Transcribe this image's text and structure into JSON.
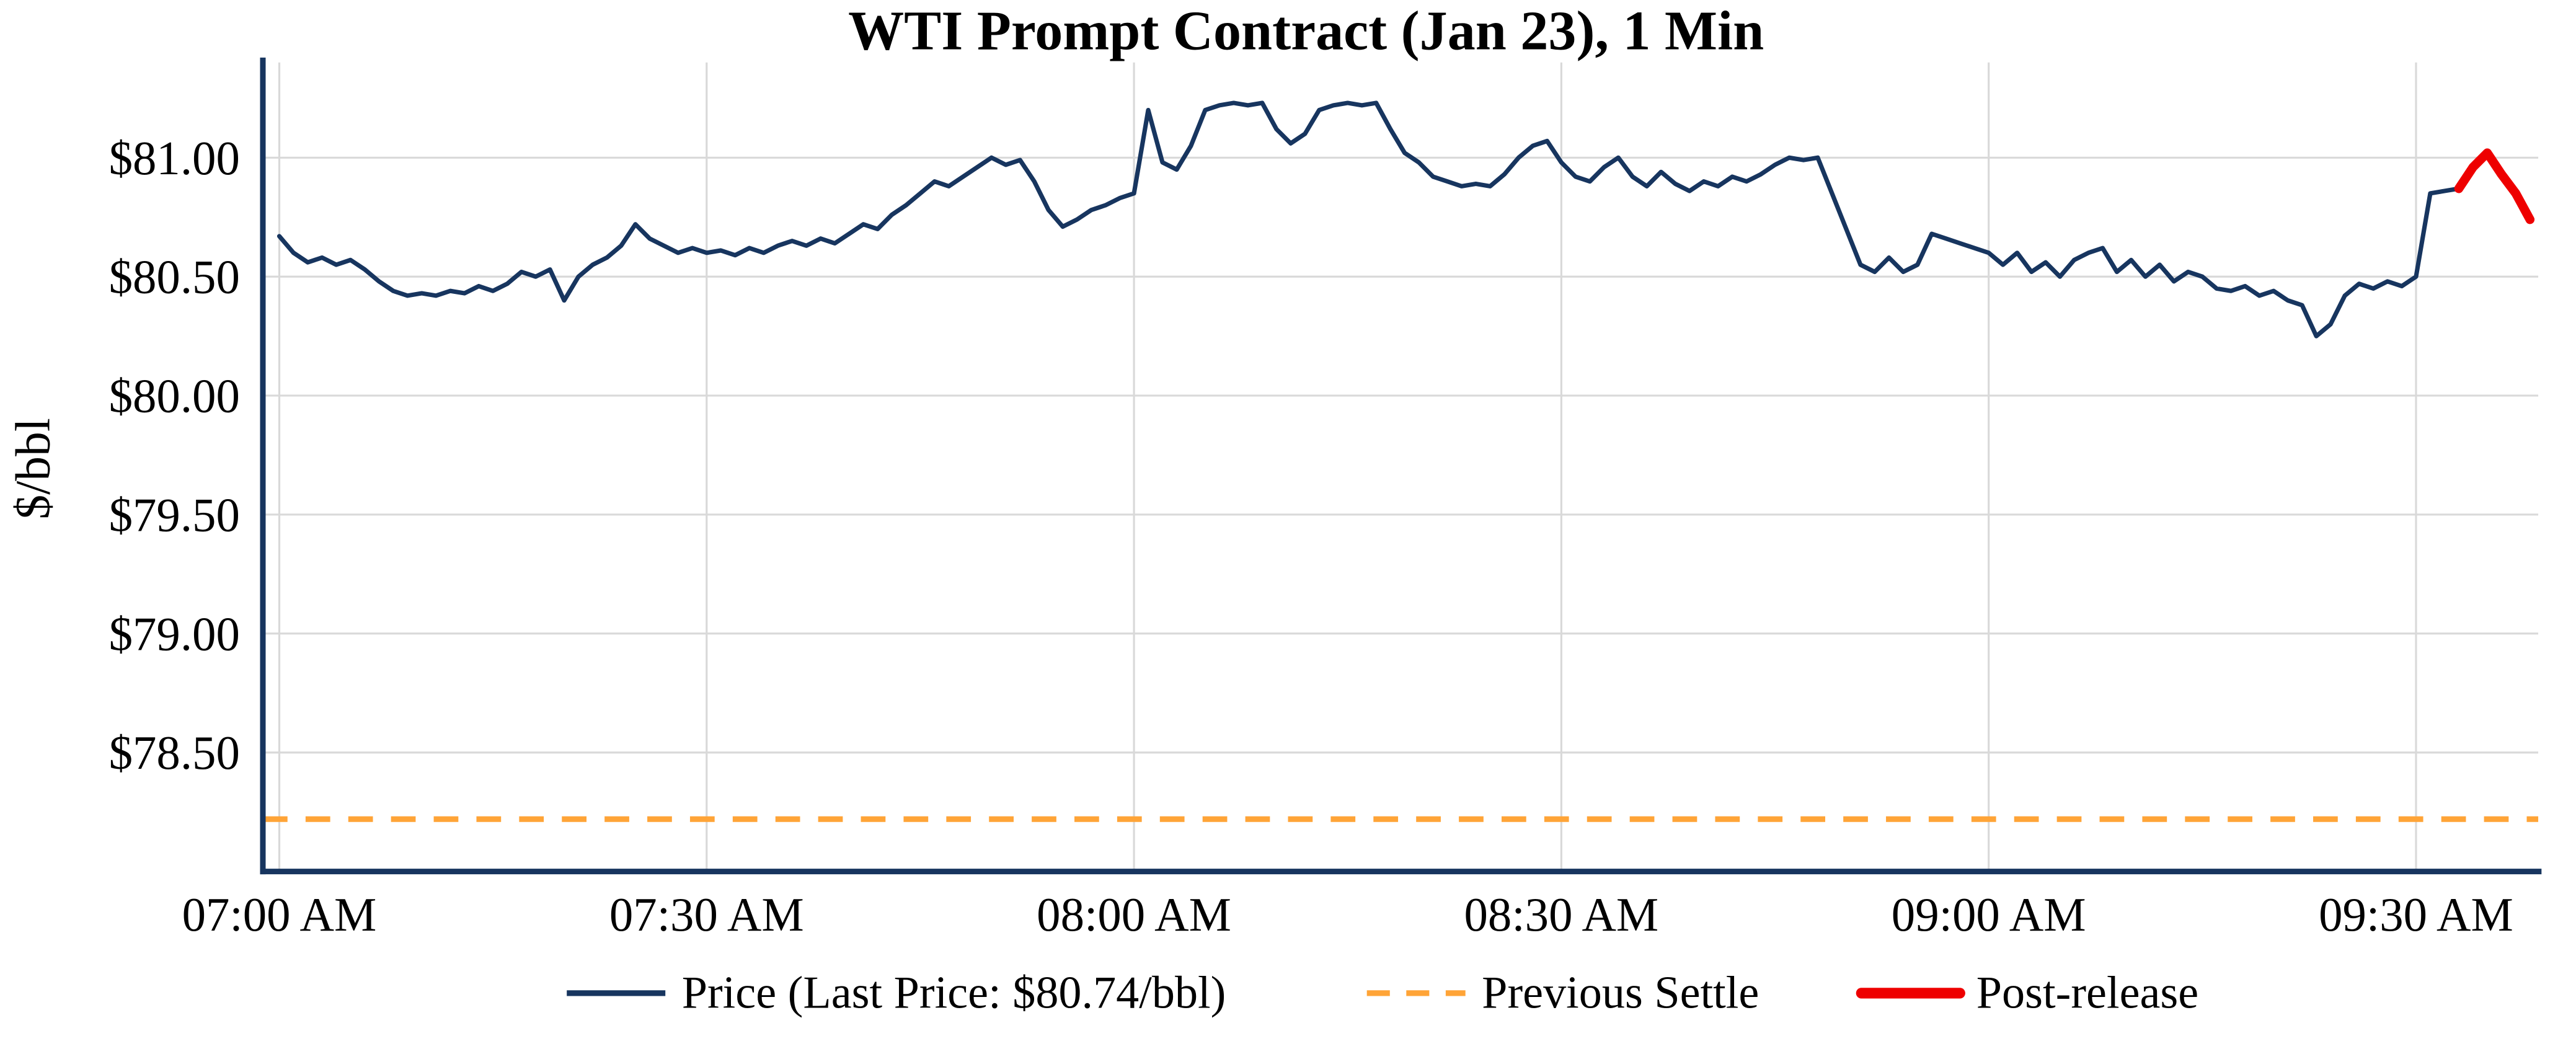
{
  "page": {
    "background": "#ffffff"
  },
  "chart_data": {
    "type": "line",
    "title": "WTI Prompt Contract (Jan 23), 1 Min",
    "ylabel": "$/bbl",
    "xlabel": "",
    "grid": true,
    "legend_position": "bottom-center",
    "start_time": "07:00 AM",
    "interval_minutes": 1,
    "x_tick_minutes": [
      0,
      30,
      60,
      90,
      120,
      150
    ],
    "x_tick_labels": [
      "07:00 AM",
      "07:30 AM",
      "08:00 AM",
      "08:30 AM",
      "09:00 AM",
      "09:30 AM"
    ],
    "y_ticks": [
      78.5,
      79.0,
      79.5,
      80.0,
      80.5,
      81.0
    ],
    "y_tick_labels": [
      "$78.50",
      "$79.00",
      "$79.50",
      "$80.00",
      "$80.50",
      "$81.00"
    ],
    "ylim": [
      78.0,
      81.4
    ],
    "xlim_minutes": [
      0,
      158
    ],
    "previous_settle": 78.22,
    "last_price": 80.74,
    "last_price_label": "$80.74/bbl",
    "post_release_start_index": 153,
    "grid_color": "#d9d9d9",
    "axis_color": "#17355f",
    "series": [
      {
        "name": "Price (Last Price: $80.74/bbl)",
        "color": "#17355f",
        "style": "solid",
        "values": [
          80.67,
          80.6,
          80.56,
          80.58,
          80.55,
          80.57,
          80.53,
          80.48,
          80.44,
          80.42,
          80.43,
          80.42,
          80.44,
          80.43,
          80.46,
          80.44,
          80.47,
          80.52,
          80.5,
          80.53,
          80.4,
          80.5,
          80.55,
          80.58,
          80.63,
          80.72,
          80.66,
          80.63,
          80.6,
          80.62,
          80.6,
          80.61,
          80.59,
          80.62,
          80.6,
          80.63,
          80.65,
          80.63,
          80.66,
          80.64,
          80.68,
          80.72,
          80.7,
          80.76,
          80.8,
          80.85,
          80.9,
          80.88,
          80.92,
          80.96,
          81.0,
          80.97,
          80.99,
          80.9,
          80.78,
          80.71,
          80.74,
          80.78,
          80.8,
          80.83,
          80.85,
          81.2,
          80.98,
          80.95,
          81.05,
          81.2,
          81.22,
          81.23,
          81.22,
          81.23,
          81.12,
          81.06,
          81.1,
          81.2,
          81.22,
          81.23,
          81.22,
          81.23,
          81.12,
          81.02,
          80.98,
          80.92,
          80.9,
          80.88,
          80.89,
          80.88,
          80.93,
          81.0,
          81.05,
          81.07,
          80.98,
          80.92,
          80.9,
          80.96,
          81.0,
          80.92,
          80.88,
          80.94,
          80.89,
          80.86,
          80.9,
          80.88,
          80.92,
          80.9,
          80.93,
          80.97,
          81.0,
          80.99,
          81.0,
          80.85,
          80.7,
          80.55,
          80.52,
          80.58,
          80.52,
          80.55,
          80.68,
          80.66,
          80.64,
          80.62,
          80.6,
          80.55,
          80.6,
          80.52,
          80.56,
          80.5,
          80.57,
          80.6,
          80.62,
          80.52,
          80.57,
          80.5,
          80.55,
          80.48,
          80.52,
          80.5,
          80.45,
          80.44,
          80.46,
          80.42,
          80.44,
          80.4,
          80.38,
          80.25,
          80.3,
          80.42,
          80.47,
          80.45,
          80.48,
          80.46,
          80.5,
          80.85,
          80.86,
          80.87,
          80.96,
          81.02,
          80.93,
          80.85,
          80.74
        ]
      },
      {
        "name": "Previous Settle",
        "color": "#ffa437",
        "style": "dashed",
        "value": 78.22
      },
      {
        "name": "Post-release",
        "color": "#ee0000",
        "style": "solid"
      }
    ]
  }
}
